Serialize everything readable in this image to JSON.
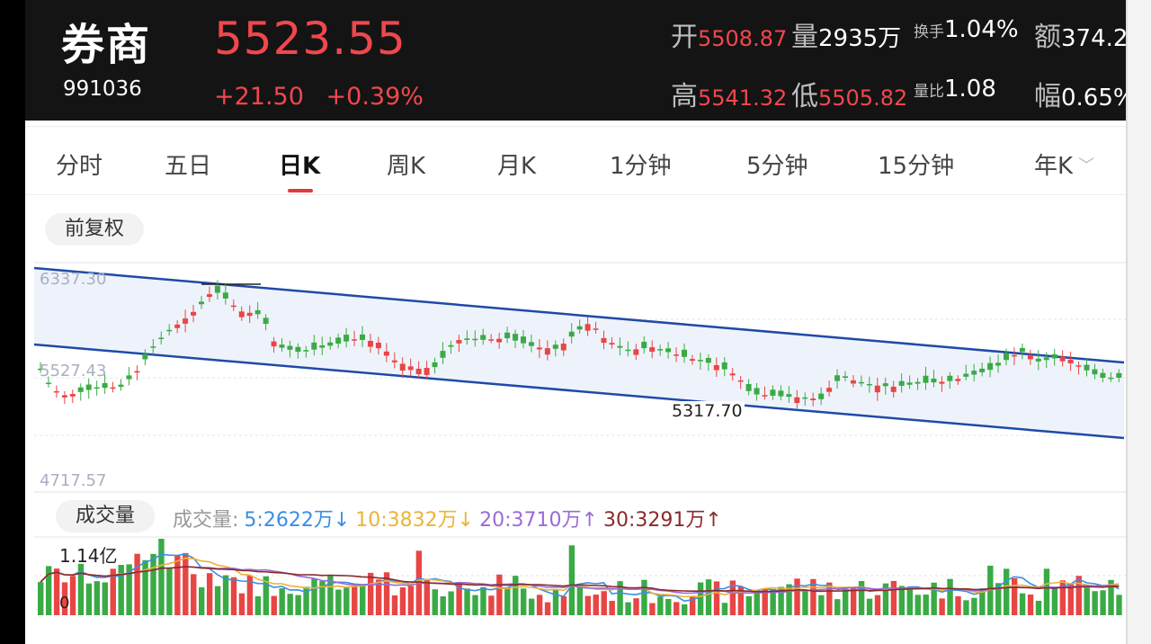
{
  "header": {
    "name": "券商",
    "code": "991036",
    "price": "5523.55",
    "change_abs": "+21.50",
    "change_pct": "+0.39%",
    "open_label": "开",
    "open_value": "5508.87",
    "volume_label": "量",
    "volume_value": "2935万",
    "turnover_label": "换手",
    "turnover_value": "1.04%",
    "amount_label": "额",
    "amount_value": "374.2",
    "high_label": "高",
    "high_value": "5541.32",
    "low_label": "低",
    "low_value": "5505.82",
    "vol_ratio_label": "量比",
    "vol_ratio_value": "1.08",
    "amplitude_label": "幅",
    "amplitude_value": "0.65%"
  },
  "tabs": [
    {
      "label": "分时"
    },
    {
      "label": "五日"
    },
    {
      "label": "日K",
      "active": true
    },
    {
      "label": "周K"
    },
    {
      "label": "月K"
    },
    {
      "label": "1分钟"
    },
    {
      "label": "5分钟"
    },
    {
      "label": "15分钟"
    },
    {
      "label": "年K",
      "has_dropdown": true
    }
  ],
  "adjust_button": "前复权",
  "chart": {
    "axis_max": "6337.30",
    "axis_mid": "5527.43",
    "axis_min": "4717.57",
    "low_marker": "5317.70",
    "colors": {
      "up": "#e84545",
      "down": "#3aaa45",
      "channel": "#1f4aa8",
      "channel_fill": "#eef3fb"
    }
  },
  "volume": {
    "button": "成交量",
    "legend_label": "成交量:",
    "ma5": "5:2622万",
    "ma5_arrow": "↓",
    "ma10": "10:3832万",
    "ma10_arrow": "↓",
    "ma20": "20:3710万",
    "ma20_arrow": "↑",
    "ma30": "30:3291万",
    "ma30_arrow": "↑",
    "max_label": "1.14亿",
    "zero_label": "0",
    "colors": {
      "ma5": "#3a8ee6",
      "ma10": "#e9b43a",
      "ma20": "#9b6ad6",
      "ma30": "#8b2a2a"
    }
  }
}
